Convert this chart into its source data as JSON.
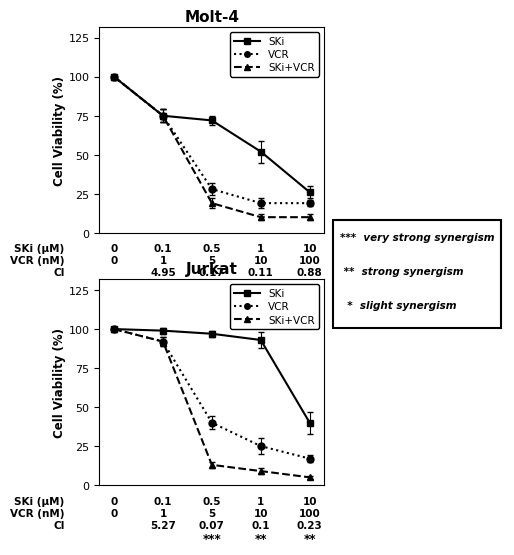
{
  "molt4": {
    "title": "Molt-4",
    "x_positions": [
      0,
      1,
      2,
      3,
      4
    ],
    "x_labels": [
      "0",
      "0.1",
      "0.5",
      "1",
      "10"
    ],
    "ski_y": [
      100,
      75,
      72,
      52,
      26
    ],
    "ski_err": [
      0,
      4,
      3,
      7,
      4
    ],
    "vcr_y": [
      100,
      75,
      28,
      19,
      19
    ],
    "vcr_err": [
      0,
      4,
      4,
      3,
      2
    ],
    "combo_y": [
      100,
      75,
      19,
      10,
      10
    ],
    "combo_err": [
      0,
      4,
      3,
      2,
      2
    ],
    "ski_label_row": [
      "SKi (μM)",
      "0",
      "0.1",
      "0.5",
      "1",
      "10"
    ],
    "vcr_label_row": [
      "VCR (nM)",
      "0",
      "1",
      "5",
      "10",
      "100"
    ],
    "ci_label_row": [
      "CI",
      "",
      "4.95",
      "0.17",
      "0.11",
      "0.88"
    ],
    "sig_row": [
      "",
      "",
      "",
      "**",
      "**",
      "*"
    ]
  },
  "jurkat": {
    "title": "Jurkat",
    "x_positions": [
      0,
      1,
      2,
      3,
      4
    ],
    "x_labels": [
      "0",
      "0.1",
      "0.5",
      "1",
      "10"
    ],
    "ski_y": [
      100,
      99,
      97,
      93,
      40
    ],
    "ski_err": [
      0,
      2,
      2,
      5,
      7
    ],
    "vcr_y": [
      100,
      92,
      40,
      25,
      17
    ],
    "vcr_err": [
      0,
      3,
      4,
      5,
      2
    ],
    "combo_y": [
      100,
      92,
      13,
      9,
      5
    ],
    "combo_err": [
      0,
      3,
      2,
      2,
      1
    ],
    "ski_label_row": [
      "SKi (μM)",
      "0",
      "0.1",
      "0.5",
      "1",
      "10"
    ],
    "vcr_label_row": [
      "VCR (nM)",
      "0",
      "1",
      "5",
      "10",
      "100"
    ],
    "ci_label_row": [
      "CI",
      "",
      "5.27",
      "0.07",
      "0.1",
      "0.23"
    ],
    "sig_row": [
      "",
      "",
      "",
      "***",
      "**",
      "**"
    ]
  },
  "legend_box_text": [
    "***  very strong synergism",
    " **  strong synergism",
    "  *  slight synergism"
  ],
  "ylim": [
    0,
    132
  ],
  "yticks": [
    0,
    25,
    50,
    75,
    100,
    125
  ]
}
